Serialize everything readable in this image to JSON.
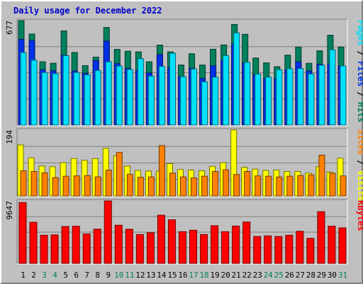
{
  "title": "Daily usage for December 2022",
  "colors": {
    "frame_bg": "#c0c0c0",
    "plot_bg": "#c0c0c0",
    "title": "#0000cc",
    "hits": "#00805c",
    "files": "#0030e8",
    "pages": "#00e0ff",
    "visits": "#ffff00",
    "sites": "#ff8000",
    "kbytes": "#ff0000",
    "weekday": "#000000",
    "weekend": "#00805c"
  },
  "chart_data": [
    {
      "type": "bar",
      "panel": "top",
      "max_label": "677",
      "side_label": [
        {
          "text": "Pages",
          "color_key": "pages"
        },
        {
          "text": " / ",
          "color_key": "weekday"
        },
        {
          "text": "Files",
          "color_key": "files"
        },
        {
          "text": " / ",
          "color_key": "weekday"
        },
        {
          "text": "Hits",
          "color_key": "hits"
        }
      ],
      "ylim": [
        0,
        677
      ],
      "categories": [
        "1",
        "2",
        "3",
        "4",
        "5",
        "6",
        "7",
        "8",
        "9",
        "10",
        "11",
        "12",
        "13",
        "14",
        "15",
        "16",
        "17",
        "18",
        "19",
        "20",
        "21",
        "22",
        "23",
        "24",
        "25",
        "26",
        "27",
        "28",
        "29",
        "30",
        "31"
      ],
      "series": [
        {
          "name": "Hits",
          "values": [
            677,
            590,
            410,
            400,
            610,
            470,
            385,
            440,
            632,
            490,
            478,
            474,
            410,
            518,
            474,
            389,
            462,
            389,
            491,
            519,
            652,
            588,
            434,
            403,
            378,
            453,
            505,
            400,
            481,
            582,
            505
          ]
        },
        {
          "name": "Files",
          "values": [
            555,
            548,
            358,
            352,
            452,
            350,
            335,
            418,
            544,
            398,
            367,
            352,
            337,
            457,
            371,
            313,
            367,
            302,
            384,
            420,
            527,
            401,
            326,
            300,
            300,
            357,
            410,
            350,
            394,
            396,
            382
          ]
        },
        {
          "name": "Pages",
          "values": [
            470,
            420,
            340,
            333,
            450,
            340,
            325,
            353,
            410,
            382,
            360,
            430,
            317,
            380,
            465,
            313,
            363,
            280,
            310,
            450,
            597,
            406,
            330,
            310,
            358,
            365,
            366,
            331,
            388,
            488,
            383
          ]
        }
      ]
    },
    {
      "type": "bar",
      "panel": "middle",
      "max_label": "194",
      "side_label": [
        {
          "text": "Sites",
          "color_key": "sites"
        },
        {
          "text": " / ",
          "color_key": "weekday"
        },
        {
          "text": "Visits",
          "color_key": "visits"
        }
      ],
      "ylim": [
        0,
        194
      ],
      "categories": [
        "1",
        "2",
        "3",
        "4",
        "5",
        "6",
        "7",
        "8",
        "9",
        "10",
        "11",
        "12",
        "13",
        "14",
        "15",
        "16",
        "17",
        "18",
        "19",
        "20",
        "21",
        "22",
        "23",
        "24",
        "25",
        "26",
        "27",
        "28",
        "29",
        "30",
        "31"
      ],
      "series": [
        {
          "name": "Visits",
          "values": [
            150,
            112,
            88,
            86,
            98,
            110,
            105,
            110,
            140,
            118,
            88,
            75,
            73,
            73,
            95,
            78,
            76,
            74,
            87,
            98,
            194,
            84,
            79,
            75,
            76,
            72,
            72,
            67,
            86,
            70,
            111
          ]
        },
        {
          "name": "Sites",
          "values": [
            74,
            72,
            68,
            54,
            58,
            59,
            60,
            56,
            76,
            128,
            64,
            55,
            56,
            148,
            67,
            56,
            53,
            58,
            72,
            77,
            63,
            72,
            59,
            58,
            56,
            58,
            60,
            62,
            120,
            67,
            59
          ]
        }
      ]
    },
    {
      "type": "bar",
      "panel": "bottom",
      "max_label": "9647",
      "side_label": [
        {
          "text": "KBytes",
          "color_key": "kbytes"
        }
      ],
      "ylim": [
        0,
        9647
      ],
      "categories": [
        "1",
        "2",
        "3",
        "4",
        "5",
        "6",
        "7",
        "8",
        "9",
        "10",
        "11",
        "12",
        "13",
        "14",
        "15",
        "16",
        "17",
        "18",
        "19",
        "20",
        "21",
        "22",
        "23",
        "24",
        "25",
        "26",
        "27",
        "28",
        "29",
        "30",
        "31"
      ],
      "series": [
        {
          "name": "KBytes",
          "values": [
            9400,
            6350,
            4350,
            4400,
            5700,
            5740,
            4560,
            5300,
            9647,
            5900,
            5280,
            4460,
            4740,
            7440,
            6740,
            4900,
            5130,
            4460,
            5820,
            4900,
            5770,
            6390,
            4160,
            4250,
            4160,
            4350,
            4960,
            3870,
            7990,
            5740,
            5490
          ]
        }
      ]
    }
  ],
  "days": [
    {
      "label": "1",
      "weekend": false
    },
    {
      "label": "2",
      "weekend": false
    },
    {
      "label": "3",
      "weekend": true
    },
    {
      "label": "4",
      "weekend": true
    },
    {
      "label": "5",
      "weekend": false
    },
    {
      "label": "6",
      "weekend": false
    },
    {
      "label": "7",
      "weekend": false
    },
    {
      "label": "8",
      "weekend": false
    },
    {
      "label": "9",
      "weekend": false
    },
    {
      "label": "10",
      "weekend": true
    },
    {
      "label": "11",
      "weekend": true
    },
    {
      "label": "12",
      "weekend": false
    },
    {
      "label": "13",
      "weekend": false
    },
    {
      "label": "14",
      "weekend": false
    },
    {
      "label": "15",
      "weekend": false
    },
    {
      "label": "16",
      "weekend": false
    },
    {
      "label": "17",
      "weekend": true
    },
    {
      "label": "18",
      "weekend": true
    },
    {
      "label": "19",
      "weekend": false
    },
    {
      "label": "20",
      "weekend": false
    },
    {
      "label": "21",
      "weekend": false
    },
    {
      "label": "22",
      "weekend": false
    },
    {
      "label": "23",
      "weekend": false
    },
    {
      "label": "24",
      "weekend": true
    },
    {
      "label": "25",
      "weekend": true
    },
    {
      "label": "26",
      "weekend": false
    },
    {
      "label": "27",
      "weekend": false
    },
    {
      "label": "28",
      "weekend": false
    },
    {
      "label": "29",
      "weekend": false
    },
    {
      "label": "30",
      "weekend": false
    },
    {
      "label": "31",
      "weekend": true
    }
  ]
}
